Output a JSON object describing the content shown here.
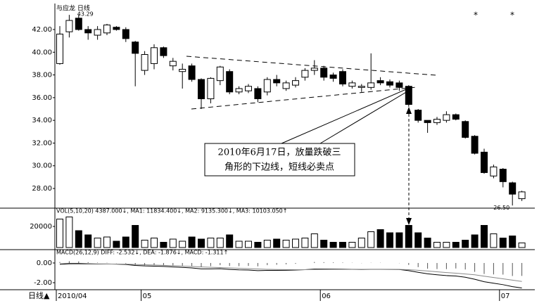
{
  "chart_data": [
    {
      "type": "candlestick",
      "title": "与应龙  日线",
      "period_label": "日线▲",
      "categories": [
        "2010/04",
        null,
        null,
        null,
        null,
        null,
        null,
        null,
        null,
        "05",
        null,
        null,
        null,
        null,
        null,
        null,
        null,
        null,
        null,
        null,
        null,
        null,
        null,
        null,
        null,
        null,
        null,
        null,
        "06",
        null,
        null,
        null,
        null,
        null,
        null,
        null,
        null,
        null,
        null,
        null,
        null,
        null,
        null,
        null,
        null,
        null,
        null,
        "07",
        null,
        null
      ],
      "open": [
        39.0,
        41.8,
        43.0,
        42.0,
        41.5,
        41.7,
        42.2,
        42.0,
        40.9,
        38.4,
        39.0,
        40.4,
        38.8,
        38.3,
        38.8,
        37.6,
        35.9,
        37.5,
        38.3,
        36.5,
        36.6,
        36.8,
        36.5,
        37.6,
        36.8,
        37.1,
        37.8,
        38.4,
        38.6,
        38.0,
        38.3,
        37.0,
        36.9,
        36.9,
        37.5,
        37.4,
        37.3,
        37.0,
        34.9,
        34.0,
        33.8,
        34.0,
        34.5,
        33.9,
        32.6,
        31.2,
        29.1,
        29.7,
        28.5,
        27.1
      ],
      "close": [
        41.6,
        42.8,
        42.0,
        41.7,
        42.0,
        42.4,
        42.0,
        41.2,
        39.9,
        39.8,
        40.4,
        39.7,
        39.2,
        38.5,
        37.6,
        35.9,
        37.7,
        38.7,
        36.5,
        36.8,
        37.0,
        35.9,
        37.6,
        37.3,
        37.3,
        37.5,
        38.4,
        38.6,
        37.8,
        37.7,
        37.2,
        37.3,
        37.0,
        37.3,
        37.3,
        37.1,
        36.9,
        35.4,
        34.0,
        33.8,
        34.1,
        34.5,
        34.1,
        32.5,
        31.1,
        29.4,
        29.9,
        28.6,
        27.5,
        27.7
      ],
      "high": [
        42.3,
        43.29,
        43.3,
        42.3,
        42.3,
        42.5,
        42.3,
        42.2,
        41.0,
        40.1,
        40.7,
        40.5,
        39.5,
        39.0,
        39.0,
        37.7,
        37.8,
        38.8,
        38.5,
        37.0,
        37.2,
        37.0,
        37.8,
        38.0,
        37.5,
        37.8,
        38.6,
        39.3,
        38.8,
        38.2,
        38.5,
        37.5,
        37.2,
        39.9,
        37.8,
        37.6,
        37.5,
        37.1,
        35.0,
        34.0,
        34.3,
        34.8,
        34.6,
        34.0,
        32.7,
        31.5,
        30.1,
        29.8,
        28.6,
        27.8
      ],
      "low": [
        38.9,
        41.3,
        41.9,
        41.1,
        41.1,
        41.5,
        41.9,
        40.9,
        37.0,
        38.0,
        38.5,
        39.5,
        38.4,
        36.8,
        37.4,
        35.0,
        35.5,
        37.1,
        36.3,
        36.3,
        36.4,
        35.6,
        36.2,
        37.0,
        36.6,
        36.9,
        37.5,
        38.0,
        37.5,
        37.4,
        37.0,
        36.8,
        36.5,
        36.7,
        37.1,
        36.9,
        36.6,
        35.2,
        33.8,
        32.9,
        33.6,
        33.8,
        34.0,
        32.4,
        31.0,
        29.3,
        28.9,
        28.1,
        26.5,
        26.9
      ],
      "up_color": "#ffffff",
      "down_color": "#000000",
      "high_label": "43.29",
      "low_label": "26.50",
      "annotation": [
        "2010年6月17日，放量跌破三",
        "角形的下边线，短线必卖点"
      ],
      "ylim": [
        26.33,
        44.29
      ],
      "yticks": [
        {
          "value": 28,
          "label": "28.00"
        },
        {
          "value": 30,
          "label": "30.00"
        },
        {
          "value": 32,
          "label": "32.00"
        },
        {
          "value": 34,
          "label": "34.00"
        },
        {
          "value": 36,
          "label": "36.00"
        },
        {
          "value": 38,
          "label": "38.00"
        },
        {
          "value": 40,
          "label": "40.00"
        },
        {
          "value": 42,
          "label": "42.00"
        }
      ]
    },
    {
      "type": "bar",
      "title": "VOL(5,10,20)  4387.000↓, MA1: 11834.400↓, MA2: 9135.300↓, MA3: 10103.050↑",
      "values": [
        27000,
        29000,
        16000,
        12000,
        9000,
        10000,
        6000,
        10000,
        21000,
        7000,
        9000,
        5000,
        8000,
        6000,
        10000,
        8000,
        9000,
        9000,
        12000,
        6000,
        6000,
        5000,
        7000,
        8000,
        7000,
        8000,
        9000,
        13000,
        7000,
        5000,
        5000,
        5000,
        9000,
        15000,
        17000,
        14000,
        14000,
        21000,
        14000,
        9000,
        5000,
        5000,
        5000,
        7000,
        12000,
        21000,
        13000,
        9000,
        11000,
        4387
      ],
      "ylim": [
        0,
        36700
      ],
      "yticks": [
        20000
      ]
    },
    {
      "type": "macd",
      "title": "MACD(26,12,9)  DIFF: -2.532↓, DEA: -1.876↓, MACD: -1.311↑",
      "series": [
        {
          "name": "DIFF",
          "color": "#000000",
          "values": [
            -0.1,
            -0.05,
            -0.05,
            -0.08,
            -0.1,
            -0.1,
            -0.12,
            -0.15,
            -0.25,
            -0.3,
            -0.32,
            -0.35,
            -0.4,
            -0.45,
            -0.5,
            -0.6,
            -0.6,
            -0.58,
            -0.65,
            -0.7,
            -0.72,
            -0.78,
            -0.75,
            -0.75,
            -0.74,
            -0.72,
            -0.68,
            -0.62,
            -0.62,
            -0.62,
            -0.63,
            -0.64,
            -0.66,
            -0.64,
            -0.64,
            -0.65,
            -0.66,
            -0.78,
            -0.95,
            -1.1,
            -1.2,
            -1.28,
            -1.32,
            -1.45,
            -1.65,
            -1.9,
            -2.05,
            -2.2,
            -2.4,
            -2.532
          ]
        },
        {
          "name": "DEA",
          "color": "#888888",
          "values": [
            -0.15,
            -0.14,
            -0.13,
            -0.12,
            -0.12,
            -0.11,
            -0.11,
            -0.12,
            -0.15,
            -0.18,
            -0.21,
            -0.24,
            -0.27,
            -0.31,
            -0.35,
            -0.4,
            -0.44,
            -0.47,
            -0.5,
            -0.54,
            -0.57,
            -0.61,
            -0.64,
            -0.66,
            -0.67,
            -0.68,
            -0.68,
            -0.67,
            -0.66,
            -0.65,
            -0.65,
            -0.65,
            -0.65,
            -0.65,
            -0.65,
            -0.65,
            -0.65,
            -0.68,
            -0.74,
            -0.81,
            -0.89,
            -0.97,
            -1.04,
            -1.12,
            -1.2,
            -1.34,
            -1.47,
            -1.61,
            -1.74,
            -1.876
          ]
        },
        {
          "name": "MACD",
          "color": "#555555",
          "values": [
            0.1,
            0.18,
            0.16,
            0.08,
            0.04,
            0.02,
            -0.02,
            -0.06,
            -0.2,
            -0.24,
            -0.22,
            -0.22,
            -0.26,
            -0.28,
            -0.3,
            -0.4,
            -0.32,
            -0.22,
            -0.3,
            -0.32,
            -0.3,
            -0.34,
            -0.22,
            -0.18,
            -0.14,
            -0.08,
            0,
            0.1,
            0.08,
            0.06,
            0.04,
            0.02,
            -0.02,
            0.02,
            0.02,
            0,
            -0.02,
            -0.2,
            -0.42,
            -0.58,
            -0.62,
            -0.62,
            -0.56,
            -0.66,
            -0.9,
            -1.12,
            -1.16,
            -1.18,
            -1.32,
            -1.311
          ]
        }
      ],
      "ylim": [
        -2.57,
        1.21
      ],
      "yticks": [
        {
          "value": -2,
          "label": "-2.00"
        },
        {
          "value": 0,
          "label": "0.00"
        }
      ]
    }
  ]
}
